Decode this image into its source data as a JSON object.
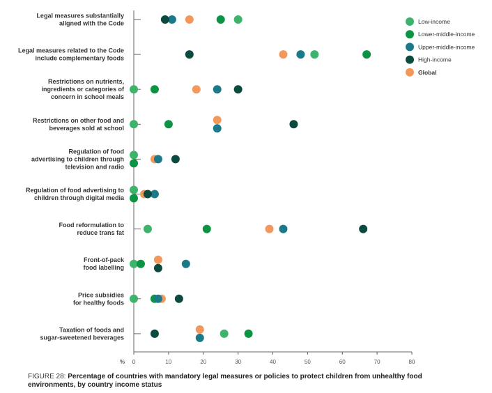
{
  "chart_data": {
    "type": "scatter",
    "title": "",
    "xlabel": "%",
    "xlim": [
      0,
      80
    ],
    "xticks": [
      "0",
      "10",
      "20",
      "30",
      "40",
      "50",
      "60",
      "70",
      "80"
    ],
    "legend_position": "top-right",
    "categories": [
      "Legal measures substantially\naligned with the Code",
      "Legal measures related to the Code\ninclude complementary foods",
      "Restrictions on nutrients,\ningredients or categories of\nconcern  in school meals",
      "Restrictions on other food and\nbeverages sold at school",
      "Regulation of food\nadvertising to children through\ntelevision and radio",
      "Regulation of food advertising to\nchildren through digital media",
      "Food reformulation to\nreduce trans fat",
      "Front-of-pack\nfood labelling",
      "Price subsidies\nfor healthy foods",
      "Taxation of foods and\nsugar-sweetened beverages"
    ],
    "series": [
      {
        "name": "Low-income",
        "color": "#3db36b",
        "values": [
          30,
          52,
          0,
          0,
          0,
          0,
          4,
          0,
          0,
          26
        ]
      },
      {
        "name": "Lower-middle-income",
        "color": "#0a9444",
        "values": [
          25,
          67,
          6,
          10,
          0,
          0,
          21,
          2,
          6,
          33
        ]
      },
      {
        "name": "Global",
        "color": "#f4975a",
        "values": [
          16,
          43,
          18,
          24,
          6,
          3,
          39,
          7,
          8,
          19
        ]
      },
      {
        "name": "Upper-middle-income",
        "color": "#1b7a8a",
        "values": [
          11,
          48,
          24,
          24,
          7,
          6,
          43,
          15,
          7,
          19
        ]
      },
      {
        "name": "High-income",
        "color": "#0b4a3e",
        "values": [
          9,
          16,
          30,
          46,
          12,
          4,
          66,
          7,
          13,
          6
        ]
      }
    ],
    "legend": [
      {
        "name": "Low-income",
        "color": "#3db36b"
      },
      {
        "name": "Lower-middle-income",
        "color": "#0a9444"
      },
      {
        "name": "Upper-middle-income",
        "color": "#1b7a8a"
      },
      {
        "name": "High-income",
        "color": "#0b4a3e"
      },
      {
        "name": "Global",
        "color": "#f4975a",
        "bold": true
      }
    ]
  },
  "caption": {
    "prefix": "FIGURE 28: ",
    "text": "Percentage of countries with mandatory legal measures or policies to protect children from unhealthy food environments, by country income status"
  }
}
